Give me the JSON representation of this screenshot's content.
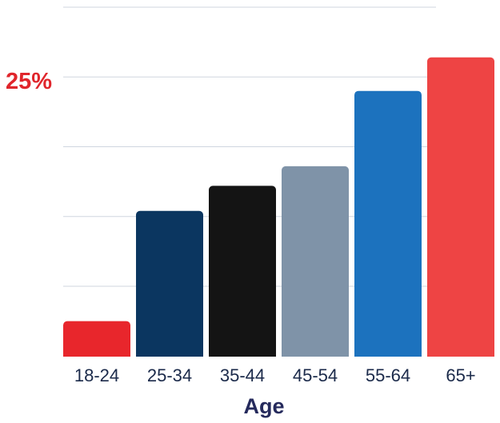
{
  "chart_data": {
    "type": "bar",
    "categories": [
      "18-24",
      "25-34",
      "35-44",
      "45-54",
      "55-64",
      "65+"
    ],
    "values": [
      2.5,
      10.4,
      12.2,
      13.6,
      19.0,
      21.4
    ],
    "colors": [
      "#e8262c",
      "#0b3660",
      "#141414",
      "#7f93a8",
      "#1c72be",
      "#ee4444"
    ],
    "xlabel": "Age",
    "ylabel": "",
    "ylim": [
      0,
      25
    ],
    "y_tick_values": [
      0,
      5,
      10,
      15,
      20,
      25,
      30
    ],
    "labeled_y_tick": "25%",
    "grid": true
  }
}
